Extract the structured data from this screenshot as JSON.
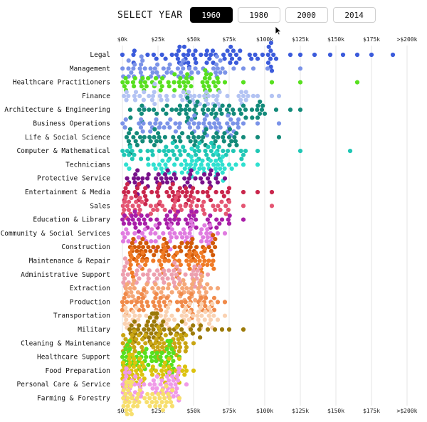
{
  "controls": {
    "select_label": "SELECT YEAR",
    "years": [
      "1960",
      "1980",
      "2000",
      "2014"
    ],
    "selected": "1960"
  },
  "chart_data": {
    "type": "scatter",
    "subtype": "beeswarm",
    "title": "",
    "xlabel": "",
    "ylabel": "",
    "xlim": [
      0,
      200000
    ],
    "x_ticks": [
      0,
      25000,
      50000,
      75000,
      100000,
      125000,
      150000,
      175000,
      200000
    ],
    "x_tick_labels": [
      "$0k",
      "$25k",
      "$50k",
      "$75k",
      "$100k",
      "$125k",
      "$150k",
      "$175k",
      ">$200k"
    ],
    "axis_position": "top-and-bottom",
    "grid": true,
    "categories": [
      {
        "name": "Legal",
        "color": "#3b5bdb",
        "n": 60,
        "min": 0,
        "q1": 36000,
        "median": 58000,
        "q3": 82000,
        "max": 190000,
        "outliers": [
          95000,
          105000,
          108000,
          118000,
          125000,
          135000,
          146000,
          155000,
          165000,
          175000,
          190000
        ]
      },
      {
        "name": "Management",
        "color": "#7b93e8",
        "n": 55,
        "min": 0,
        "q1": 14000,
        "median": 32000,
        "q3": 52000,
        "max": 125000,
        "outliers": [
          85000,
          92000,
          102000,
          125000
        ]
      },
      {
        "name": "Healthcare Practitioners",
        "color": "#58e01f",
        "n": 55,
        "min": 0,
        "q1": 17000,
        "median": 33000,
        "q3": 47000,
        "max": 165000,
        "outliers": [
          58000,
          62000,
          72000,
          85000,
          105000,
          125000,
          165000
        ]
      },
      {
        "name": "Finance",
        "color": "#b3c3f3",
        "n": 55,
        "min": 0,
        "q1": 28000,
        "median": 46000,
        "q3": 66000,
        "max": 110000,
        "outliers": [
          85000,
          95000,
          105000,
          110000
        ]
      },
      {
        "name": "Architecture & Engineering",
        "color": "#138a7a",
        "n": 60,
        "min": 5000,
        "q1": 33000,
        "median": 52000,
        "q3": 72000,
        "max": 125000,
        "outliers": [
          85000,
          95000,
          100000,
          108000,
          118000,
          125000
        ]
      },
      {
        "name": "Business Operations",
        "color": "#7b93e8",
        "n": 55,
        "min": 0,
        "q1": 28000,
        "median": 44000,
        "q3": 62000,
        "max": 110000,
        "outliers": [
          75000,
          85000,
          95000,
          110000
        ]
      },
      {
        "name": "Life & Social Science",
        "color": "#138a7a",
        "n": 55,
        "min": 0,
        "q1": 25000,
        "median": 42000,
        "q3": 60000,
        "max": 110000,
        "outliers": [
          75000,
          85000,
          95000,
          110000
        ]
      },
      {
        "name": "Computer & Mathematical",
        "color": "#20c7b5",
        "n": 55,
        "min": 0,
        "q1": 26000,
        "median": 43000,
        "q3": 62000,
        "max": 160000,
        "outliers": [
          85000,
          95000,
          125000,
          160000
        ]
      },
      {
        "name": "Technicians",
        "color": "#2fe0d0",
        "n": 55,
        "min": 0,
        "q1": 28000,
        "median": 44000,
        "q3": 60000,
        "max": 95000,
        "outliers": [
          75000,
          85000,
          95000
        ]
      },
      {
        "name": "Protective Service",
        "color": "#78118a",
        "n": 45,
        "min": 0,
        "q1": 22000,
        "median": 38000,
        "q3": 56000,
        "max": 72000,
        "outliers": [
          62000,
          67000,
          72000
        ]
      },
      {
        "name": "Entertainment & Media",
        "color": "#c9264c",
        "n": 55,
        "min": 0,
        "q1": 12000,
        "median": 30000,
        "q3": 50000,
        "max": 105000,
        "outliers": [
          75000,
          85000,
          95000,
          105000
        ]
      },
      {
        "name": "Sales",
        "color": "#e45572",
        "n": 55,
        "min": 0,
        "q1": 10000,
        "median": 26000,
        "q3": 48000,
        "max": 105000,
        "outliers": [
          75000,
          85000,
          105000
        ]
      },
      {
        "name": "Education & Library",
        "color": "#a81ea8",
        "n": 55,
        "min": 0,
        "q1": 18000,
        "median": 36000,
        "q3": 54000,
        "max": 85000,
        "outliers": [
          70000,
          75000,
          85000
        ]
      },
      {
        "name": "Community & Social Services",
        "color": "#e07be0",
        "n": 55,
        "min": 0,
        "q1": 12000,
        "median": 30000,
        "q3": 48000,
        "max": 72000,
        "outliers": [
          62000,
          67000,
          72000
        ]
      },
      {
        "name": "Construction",
        "color": "#d25a08",
        "n": 60,
        "min": 5000,
        "q1": 20000,
        "median": 36000,
        "q3": 54000,
        "max": 72000,
        "outliers": []
      },
      {
        "name": "Maintenance & Repair",
        "color": "#f07b26",
        "n": 60,
        "min": 5000,
        "q1": 20000,
        "median": 36000,
        "q3": 52000,
        "max": 72000,
        "outliers": []
      },
      {
        "name": "Administrative Support",
        "color": "#ed9fae",
        "n": 55,
        "min": 0,
        "q1": 12000,
        "median": 28000,
        "q3": 46000,
        "max": 60000,
        "outliers": [
          55000,
          60000
        ]
      },
      {
        "name": "Extraction",
        "color": "#f5a878",
        "n": 55,
        "min": 0,
        "q1": 16000,
        "median": 32000,
        "q3": 50000,
        "max": 67000,
        "outliers": [
          62000,
          67000
        ]
      },
      {
        "name": "Production",
        "color": "#f08a4a",
        "n": 60,
        "min": 0,
        "q1": 16000,
        "median": 32000,
        "q3": 50000,
        "max": 72000,
        "outliers": [
          67000,
          72000
        ]
      },
      {
        "name": "Transportation",
        "color": "#fad2b2",
        "n": 60,
        "min": 0,
        "q1": 12000,
        "median": 30000,
        "q3": 48000,
        "max": 72000,
        "outliers": [
          62000,
          67000,
          72000
        ]
      },
      {
        "name": "Military",
        "color": "#9c7a09",
        "n": 55,
        "min": 5000,
        "q1": 12000,
        "median": 24000,
        "q3": 38000,
        "max": 85000,
        "outliers": [
          55000,
          60000,
          65000,
          70000,
          75000,
          85000
        ]
      },
      {
        "name": "Cleaning & Maintenance",
        "color": "#c9a512",
        "n": 60,
        "min": 0,
        "q1": 8000,
        "median": 20000,
        "q3": 34000,
        "max": 50000,
        "outliers": [
          45000,
          50000
        ]
      },
      {
        "name": "Healthcare Support",
        "color": "#58e01f",
        "n": 60,
        "min": 0,
        "q1": 6000,
        "median": 16000,
        "q3": 30000,
        "max": 40000,
        "outliers": [
          40000
        ]
      },
      {
        "name": "Food Preparation",
        "color": "#dcc20e",
        "n": 60,
        "min": 0,
        "q1": 6000,
        "median": 16000,
        "q3": 30000,
        "max": 50000,
        "outliers": [
          40000,
          45000,
          50000
        ]
      },
      {
        "name": "Personal Care & Service",
        "color": "#f09ae8",
        "n": 60,
        "min": 0,
        "q1": 6000,
        "median": 16000,
        "q3": 30000,
        "max": 45000,
        "outliers": [
          35000,
          40000,
          45000
        ]
      },
      {
        "name": "Farming & Forestry",
        "color": "#f7df6e",
        "n": 60,
        "min": 0,
        "q1": 6000,
        "median": 14000,
        "q3": 28000,
        "max": 40000,
        "outliers": [
          35000,
          40000
        ]
      }
    ]
  }
}
